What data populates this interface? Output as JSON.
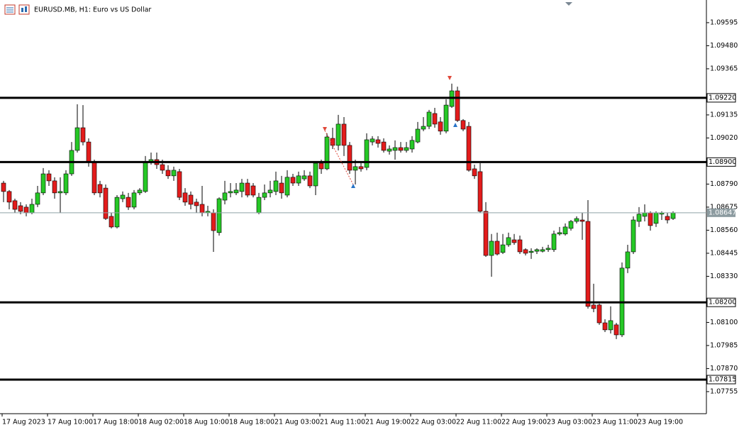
{
  "chart_data": {
    "type": "candlestick",
    "title": "EURUSD.MB, H1:  Euro vs US Dollar",
    "categories": [
      "17 Aug 2023",
      null,
      null,
      null,
      null,
      null,
      null,
      null,
      "17 Aug 10:00",
      null,
      null,
      null,
      null,
      null,
      null,
      null,
      "17 Aug 18:00",
      null,
      null,
      null,
      null,
      null,
      null,
      null,
      "18 Aug 02:00",
      null,
      null,
      null,
      null,
      null,
      null,
      null,
      "18 Aug 10:00",
      null,
      null,
      null,
      null,
      null,
      null,
      null,
      "18 Aug 18:00",
      null,
      null,
      null,
      null,
      null,
      null,
      null,
      "21 Aug 03:00",
      null,
      null,
      null,
      null,
      null,
      null,
      null,
      "21 Aug 11:00",
      null,
      null,
      null,
      null,
      null,
      null,
      null,
      "21 Aug 19:00",
      null,
      null,
      null,
      null,
      null,
      null,
      null,
      "22 Aug 03:00",
      null,
      null,
      null,
      null,
      null,
      null,
      null,
      "22 Aug 11:00",
      null,
      null,
      null,
      null,
      null,
      null,
      null,
      "22 Aug 19:00",
      null,
      null,
      null,
      null,
      null,
      null,
      null,
      "23 Aug 03:00",
      null,
      null,
      null,
      null,
      null,
      null,
      null,
      "23 Aug 11:00",
      null,
      null,
      null,
      null,
      null,
      null,
      null,
      "23 Aug 19:00",
      null,
      null,
      null,
      null,
      null,
      null
    ],
    "open": [
      1.08795,
      1.08753,
      1.08707,
      1.08682,
      1.08675,
      1.08647,
      1.08689,
      1.08746,
      1.08841,
      1.08806,
      1.08746,
      1.08746,
      1.08841,
      1.08958,
      1.09071,
      1.09,
      1.08901,
      1.08788,
      1.0877,
      1.08629,
      1.08576,
      1.08717,
      1.08724,
      1.08675,
      1.08746,
      1.08753,
      1.08901,
      1.08912,
      1.08887,
      1.08859,
      1.08831,
      1.08852,
      1.08746,
      1.08735,
      1.087,
      1.08689,
      1.08647,
      1.08647,
      1.08548,
      1.0871,
      1.08746,
      1.08746,
      1.08753,
      1.08795,
      1.08781,
      1.08647,
      1.08724,
      1.08746,
      1.08753,
      1.08795,
      1.08735,
      1.08824,
      1.08795,
      1.08816,
      1.08831,
      1.08781,
      1.08894,
      1.08866,
      1.09018,
      1.08983,
      1.09089,
      1.08983,
      1.08859,
      1.08877,
      1.08873,
      1.09,
      1.09011,
      1.09,
      1.08954,
      1.08958,
      1.08972,
      1.08958,
      1.08965,
      1.09,
      1.09064,
      1.09078,
      1.09142,
      1.091,
      1.09054,
      1.09177,
      1.09255,
      1.09107,
      1.09078,
      1.08866,
      1.08852,
      1.08654,
      1.08434,
      1.08505,
      1.08449,
      1.08487,
      1.08512,
      1.08512,
      1.08463,
      1.08449,
      1.08455,
      1.08455,
      1.08463,
      1.08463,
      1.08541,
      1.08541,
      1.08569,
      1.08604,
      1.08611,
      1.08604,
      1.08187,
      1.08187,
      1.08098,
      1.08063,
      1.08088,
      1.08038,
      1.08371,
      1.08452,
      1.08604,
      1.08629,
      1.08647,
      1.08594,
      1.0864,
      1.08629,
      1.08618
    ],
    "high": [
      1.08806,
      1.0876,
      1.08717,
      1.087,
      1.08689,
      1.08717,
      1.08781,
      1.0887,
      1.08859,
      1.08824,
      1.08824,
      1.08859,
      1.09,
      1.09188,
      1.09184,
      1.09018,
      1.08912,
      1.08806,
      1.08788,
      1.08647,
      1.08735,
      1.08753,
      1.08746,
      1.0876,
      1.0877,
      1.0893,
      1.08947,
      1.08947,
      1.08912,
      1.08884,
      1.08877,
      1.08866,
      1.0877,
      1.08753,
      1.08717,
      1.08781,
      1.08682,
      1.08664,
      1.08724,
      1.08806,
      1.08795,
      1.08795,
      1.08816,
      1.08816,
      1.08795,
      1.08746,
      1.08788,
      1.08806,
      1.08852,
      1.08831,
      1.08859,
      1.08841,
      1.08852,
      1.08859,
      1.08852,
      1.08901,
      1.08912,
      1.09043,
      1.09071,
      1.09135,
      1.09124,
      1.09,
      1.08912,
      1.08894,
      1.09043,
      1.09029,
      1.09029,
      1.09018,
      1.08983,
      1.09008,
      1.09,
      1.09,
      1.09029,
      1.091,
      1.09124,
      1.0916,
      1.0917,
      1.09124,
      1.09213,
      1.09291,
      1.09276,
      1.09114,
      1.091,
      1.08887,
      1.08894,
      1.087,
      1.08541,
      1.08548,
      1.08541,
      1.08548,
      1.08541,
      1.08533,
      1.0847,
      1.0847,
      1.0847,
      1.08477,
      1.08487,
      1.08558,
      1.08576,
      1.08594,
      1.08611,
      1.08629,
      1.08647,
      1.0871,
      1.08293,
      1.08194,
      1.08116,
      1.0818,
      1.08098,
      1.08399,
      1.08487,
      1.08629,
      1.08675,
      1.08689,
      1.08654,
      1.08654,
      1.08654,
      1.08647,
      1.08654
    ],
    "low": [
      1.087,
      1.08664,
      1.08647,
      1.0864,
      1.08629,
      1.0864,
      1.08675,
      1.08735,
      1.08781,
      1.08717,
      1.08647,
      1.08735,
      1.08831,
      1.08947,
      1.08983,
      1.08877,
      1.08735,
      1.08724,
      1.08611,
      1.08569,
      1.08569,
      1.087,
      1.08661,
      1.08664,
      1.08735,
      1.08746,
      1.08887,
      1.08866,
      1.08841,
      1.08816,
      1.08806,
      1.0871,
      1.08682,
      1.08664,
      1.08647,
      1.08629,
      1.08629,
      1.08452,
      1.08533,
      1.08689,
      1.08724,
      1.08735,
      1.08724,
      1.08724,
      1.08724,
      1.0864,
      1.0871,
      1.08724,
      1.08735,
      1.08717,
      1.08724,
      1.08781,
      1.08781,
      1.08806,
      1.0877,
      1.08735,
      1.08841,
      1.08859,
      1.08965,
      1.08958,
      1.0893,
      1.08841,
      1.08788,
      1.08852,
      1.08859,
      1.08983,
      1.08972,
      1.08947,
      1.08937,
      1.08912,
      1.08947,
      1.08947,
      1.08947,
      1.08993,
      1.09054,
      1.09064,
      1.09071,
      1.09036,
      1.09043,
      1.0917,
      1.091,
      1.09054,
      1.08852,
      1.08816,
      1.08647,
      1.08427,
      1.08328,
      1.08434,
      1.08441,
      1.08477,
      1.08487,
      1.08441,
      1.08434,
      1.08417,
      1.08441,
      1.08449,
      1.08452,
      1.08452,
      1.08533,
      1.08533,
      1.08558,
      1.08594,
      1.08512,
      1.08169,
      1.08151,
      1.08088,
      1.08052,
      1.08045,
      1.08017,
      1.08027,
      1.08346,
      1.08441,
      1.08576,
      1.08604,
      1.08558,
      1.08576,
      1.08611,
      1.08594,
      1.08611
    ],
    "close": [
      1.08753,
      1.087,
      1.08664,
      1.08654,
      1.08647,
      1.08689,
      1.08746,
      1.08841,
      1.08806,
      1.08746,
      1.08753,
      1.08841,
      1.08958,
      1.09071,
      1.09,
      1.08901,
      1.08746,
      1.08746,
      1.08618,
      1.08576,
      1.08724,
      1.08735,
      1.08675,
      1.08746,
      1.0876,
      1.08901,
      1.08912,
      1.08887,
      1.08859,
      1.08831,
      1.08859,
      1.08724,
      1.087,
      1.08689,
      1.08682,
      1.08647,
      1.08654,
      1.08558,
      1.08717,
      1.08746,
      1.08753,
      1.0876,
      1.08795,
      1.08735,
      1.08735,
      1.08724,
      1.08746,
      1.0876,
      1.08806,
      1.08746,
      1.08824,
      1.08795,
      1.08831,
      1.08831,
      1.08781,
      1.08894,
      1.08866,
      1.09025,
      1.08983,
      1.09089,
      1.08983,
      1.08859,
      1.08877,
      1.08866,
      1.09011,
      1.09015,
      1.08993,
      1.08958,
      1.08965,
      1.08972,
      1.08958,
      1.08972,
      1.09008,
      1.09064,
      1.09078,
      1.09149,
      1.09089,
      1.09054,
      1.09184,
      1.09255,
      1.09107,
      1.09064,
      1.08859,
      1.08831,
      1.08654,
      1.08434,
      1.08505,
      1.08441,
      1.08487,
      1.08523,
      1.08498,
      1.08452,
      1.08445,
      1.08455,
      1.08463,
      1.08463,
      1.0847,
      1.08541,
      1.08548,
      1.08576,
      1.08604,
      1.08618,
      1.08604,
      1.0818,
      1.08169,
      1.08098,
      1.08063,
      1.08109,
      1.08038,
      1.08371,
      1.08452,
      1.08611,
      1.0864,
      1.08647,
      1.08583,
      1.08647,
      1.08647,
      1.08611,
      1.08647
    ],
    "up_color": "#26c826",
    "down_color": "#e31c1c",
    "ylim": [
      1.07645,
      1.09708
    ],
    "yticks": [
      1.09595,
      {
        "value": 1.0948,
        "label": "1.09480"
      },
      1.09365,
      1.09135,
      {
        "value": 1.0902,
        "label": "1.09020"
      },
      {
        "value": 1.0879,
        "label": "1.08790"
      },
      1.08675,
      {
        "value": 1.0856,
        "label": "1.08560"
      },
      1.08445,
      {
        "value": 1.0833,
        "label": "1.08330"
      },
      {
        "value": 1.081,
        "label": "1.08100"
      },
      1.07985,
      {
        "value": 1.0787,
        "label": "1.07870"
      },
      1.07755
    ],
    "hlines": [
      {
        "value": 1.0922,
        "label": "1.09220"
      },
      {
        "value": 1.089,
        "label": "1.08900"
      },
      {
        "value": 1.082,
        "label": "1.08200"
      },
      {
        "value": 1.07815,
        "label": "1.07815"
      }
    ],
    "price_line": 1.08647
  }
}
